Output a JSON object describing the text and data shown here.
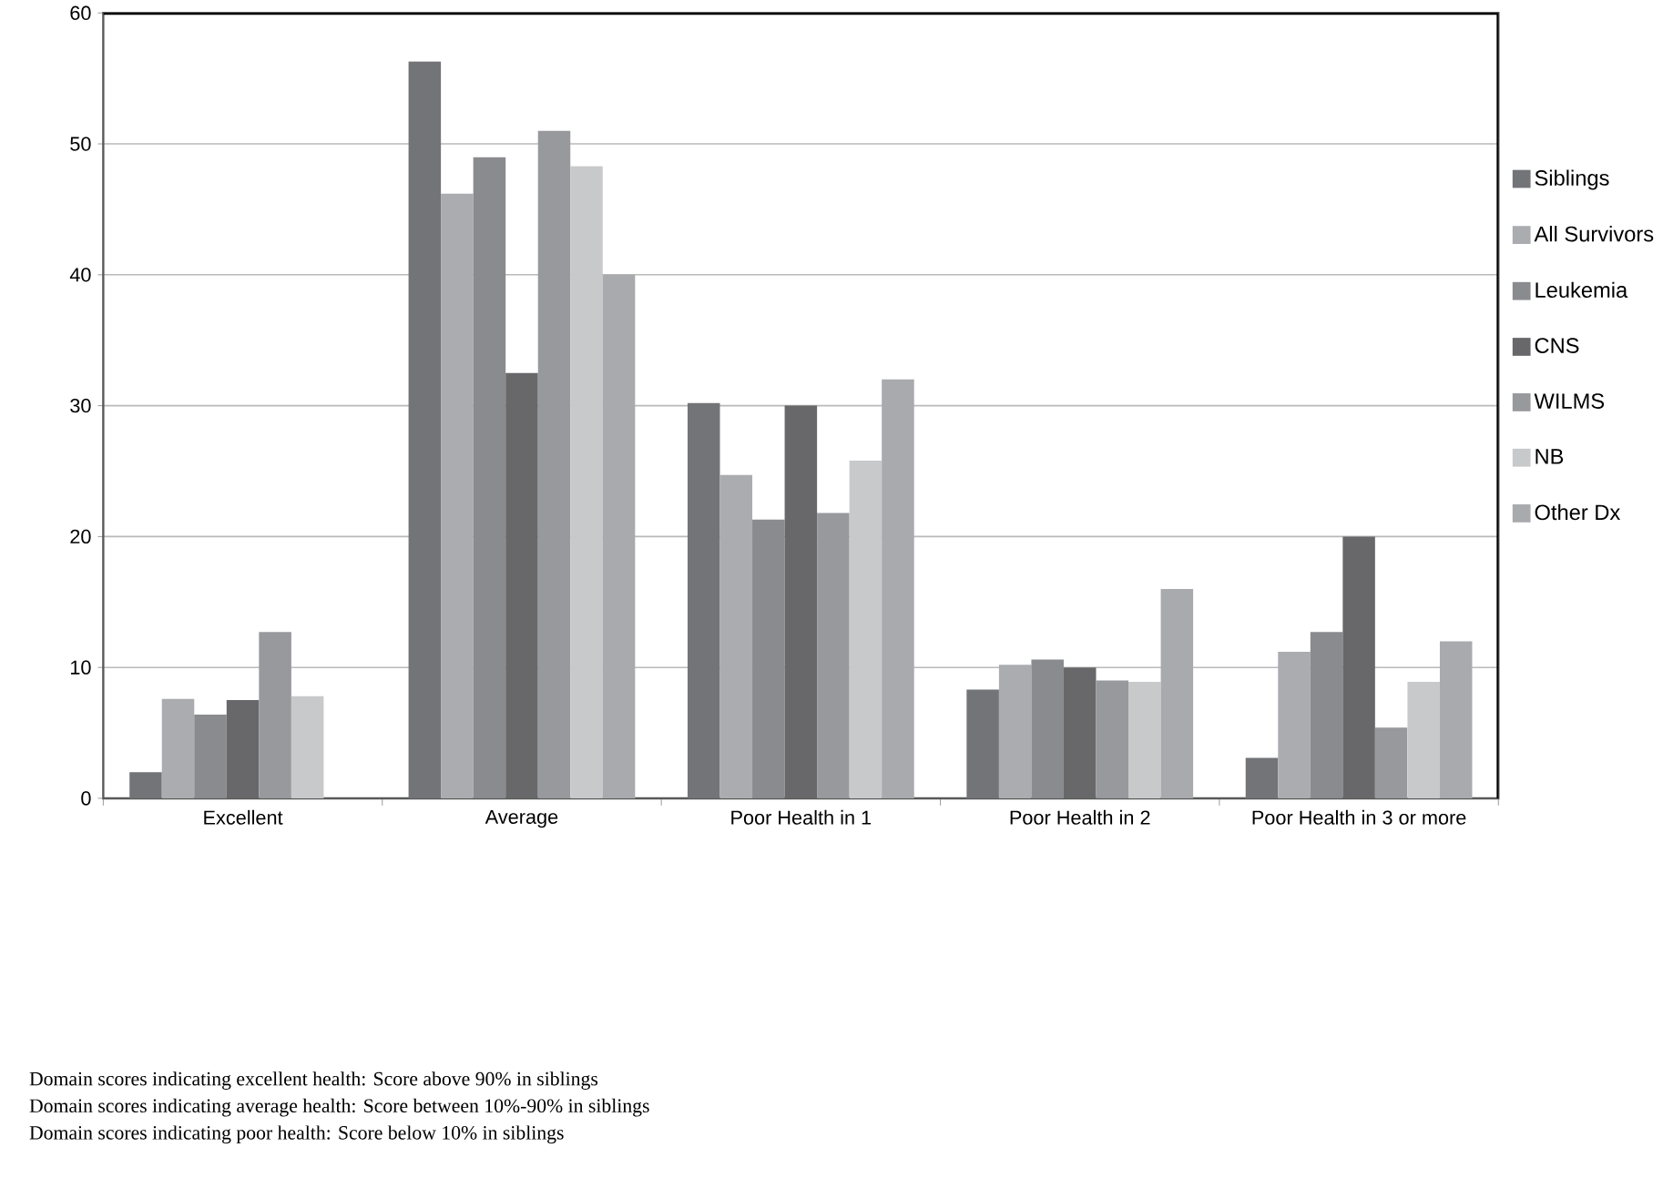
{
  "chart_data": {
    "type": "bar",
    "categories": [
      "Excellent",
      "Average",
      "Poor Health in 1",
      "Poor Health in 2",
      "Poor Health in 3 or more"
    ],
    "series": [
      {
        "name": "Siblings",
        "color": "#737478",
        "values": [
          2,
          56.3,
          30.2,
          8.3,
          3.1
        ]
      },
      {
        "name": "All Survivors",
        "color": "#abacb0",
        "values": [
          7.6,
          46.2,
          24.7,
          10.2,
          11.2
        ]
      },
      {
        "name": "Leukemia",
        "color": "#8a8b8f",
        "values": [
          6.4,
          49,
          21.3,
          10.6,
          12.7
        ]
      },
      {
        "name": "CNS",
        "color": "#68686b",
        "values": [
          7.5,
          32.5,
          30,
          10,
          20
        ]
      },
      {
        "name": "WILMS",
        "color": "#98999d",
        "values": [
          12.7,
          51,
          21.8,
          9,
          5.4
        ]
      },
      {
        "name": "NB",
        "color": "#c8c9cb",
        "values": [
          7.8,
          48.3,
          25.8,
          8.9,
          8.9
        ]
      },
      {
        "name": "Other Dx",
        "color": "#a9aaae",
        "values": [
          null,
          40,
          32,
          16,
          12
        ]
      }
    ],
    "ylim": [
      0,
      60
    ],
    "yticks": [
      0,
      10,
      20,
      30,
      40,
      50,
      60
    ],
    "grid": "y",
    "legend": "right",
    "annotations": [
      "Domain scores indicating excellent health: Score above 90% in siblings",
      "Domain scores indicating average health: Score between 10%-90% in siblings",
      "Domain scores indicating poor health: Score below 10% in siblings"
    ]
  }
}
